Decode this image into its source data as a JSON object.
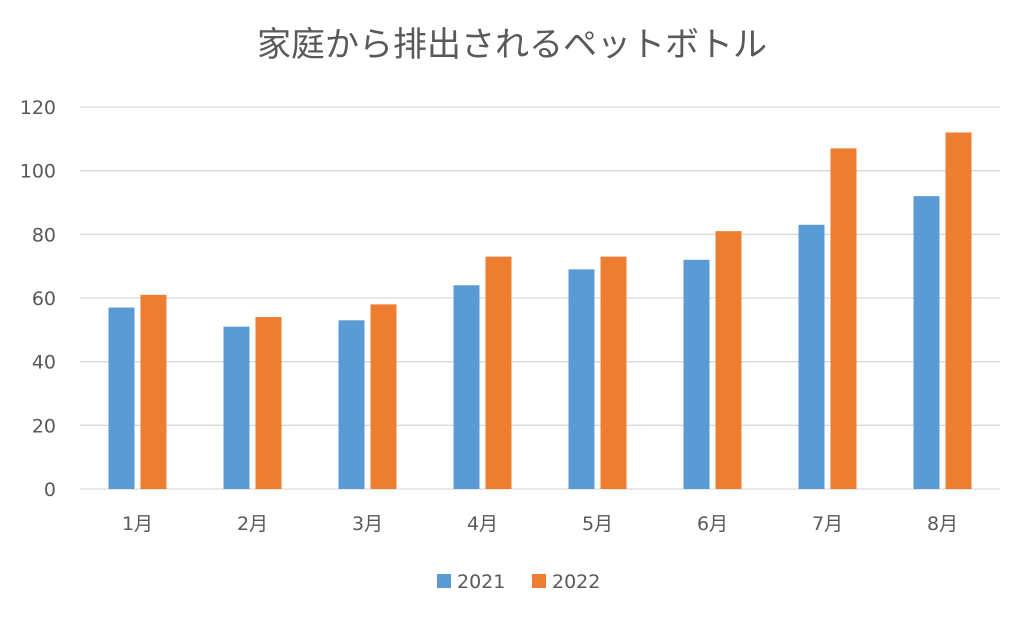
{
  "chart_data": {
    "type": "bar",
    "title": "家庭から排出されるペットボトル",
    "xlabel": "",
    "ylabel": "",
    "categories": [
      "1月",
      "2月",
      "3月",
      "4月",
      "5月",
      "6月",
      "7月",
      "8月"
    ],
    "series": [
      {
        "name": "2021",
        "color": "#5B9BD5",
        "values": [
          57,
          51,
          53,
          64,
          69,
          72,
          83,
          92
        ]
      },
      {
        "name": "2022",
        "color": "#ED7D31",
        "values": [
          61,
          54,
          58,
          73,
          73,
          81,
          107,
          112
        ]
      }
    ],
    "ylim": [
      0,
      120
    ],
    "yticks": [
      0,
      20,
      40,
      60,
      80,
      100,
      120
    ],
    "ytick_labels": [
      "0",
      "20",
      "40",
      "60",
      "80",
      "100",
      "120"
    ],
    "grid": true,
    "legend_position": "bottom"
  }
}
